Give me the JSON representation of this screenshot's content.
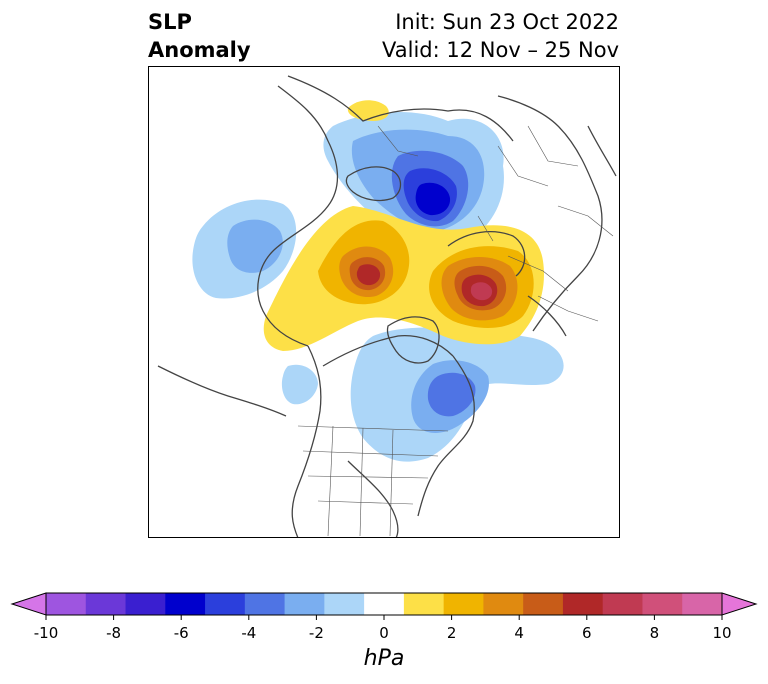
{
  "title": {
    "left": [
      "SLP",
      "Anomaly"
    ],
    "right": [
      "Init: Sun 23 Oct 2022",
      "Valid: 12 Nov – 25 Nov"
    ]
  },
  "map": {
    "projection": "polar-stereographic (north)",
    "anomalies": [
      {
        "region": "northern-siberia",
        "sign": "negative",
        "peak_hPa": -6
      },
      {
        "region": "north-atlantic",
        "sign": "negative",
        "peak_hPa": -4
      },
      {
        "region": "alaska-bering",
        "sign": "negative",
        "peak_hPa": -3
      },
      {
        "region": "greenland-arctic",
        "sign": "positive",
        "peak_hPa": 5
      },
      {
        "region": "scandinavia-europe",
        "sign": "positive",
        "peak_hPa": 6
      },
      {
        "region": "northern-europe-russia",
        "sign": "positive",
        "peak_hPa": 7
      },
      {
        "region": "north-atlantic-subtropics",
        "sign": "positive",
        "peak_hPa": 1
      }
    ]
  },
  "colorbar": {
    "unit": "hPa",
    "ticks": [
      "-10",
      "-8",
      "-6",
      "-4",
      "-2",
      "0",
      "2",
      "4",
      "6",
      "8",
      "10"
    ],
    "colors": [
      "#d575e8",
      "#9e55e0",
      "#6b38d8",
      "#3a1fd0",
      "#0000cd",
      "#2b3fdc",
      "#4f74e4",
      "#7aaef0",
      "#acd6f8",
      "#ffffff",
      "#fde047",
      "#f0b400",
      "#e08a10",
      "#c85c18",
      "#b02828",
      "#c03a52",
      "#d0507a",
      "#d865a8",
      "#e575d9"
    ]
  }
}
